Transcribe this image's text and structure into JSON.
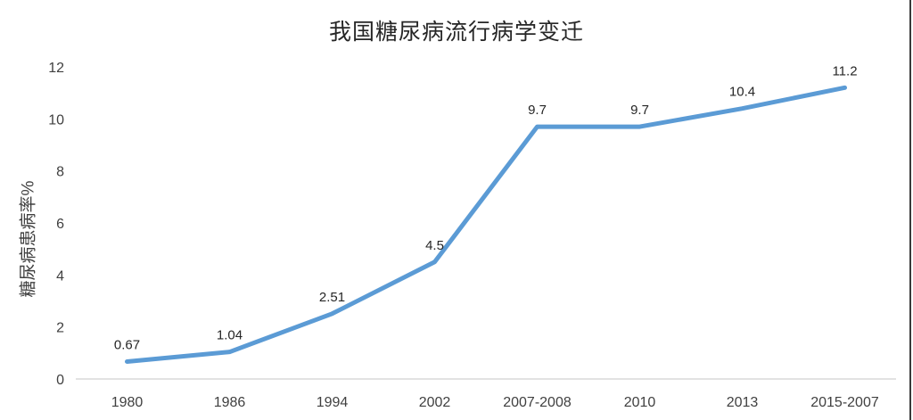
{
  "chart_data": {
    "type": "line",
    "title": "我国糖尿病流行病学变迁",
    "xlabel": "",
    "ylabel": "糖尿病患病率%",
    "categories": [
      "1980",
      "1986",
      "1994",
      "2002",
      "2007-2008",
      "2010",
      "2013",
      "2015-2007"
    ],
    "values": [
      0.67,
      1.04,
      2.51,
      4.5,
      9.7,
      9.7,
      10.4,
      11.2
    ],
    "data_labels": [
      "0.67",
      "1.04",
      "2.51",
      "4.5",
      "9.7",
      "9.7",
      "10.4",
      "11.2"
    ],
    "ylim": [
      0,
      12
    ],
    "yticks": [
      0,
      2,
      4,
      6,
      8,
      10,
      12
    ],
    "grid": false,
    "legend": "none",
    "colors": {
      "line": "#5B9BD5",
      "axis_line": "#D9D9D9",
      "tick_text": "#404040",
      "title_text": "#262626",
      "right_edge_line": "#3a3a3a"
    }
  }
}
